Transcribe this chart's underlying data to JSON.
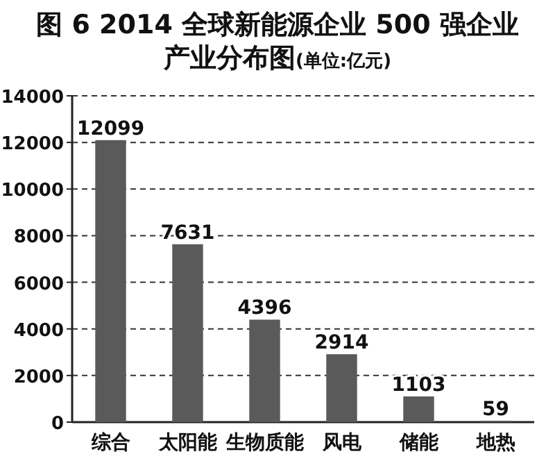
{
  "chart_data": {
    "type": "bar",
    "title": "图 6  2014 全球新能源企业 500 强企业产业分布图",
    "subtitle": "(单位:亿元)",
    "categories": [
      "综合",
      "太阳能",
      "生物质能",
      "风电",
      "储能",
      "地热"
    ],
    "values": [
      12099,
      7631,
      4396,
      2914,
      1103,
      59
    ],
    "color": "#5a5a5a",
    "ylim": [
      0,
      14000
    ],
    "yticks": [
      0,
      2000,
      4000,
      6000,
      8000,
      10000,
      12000,
      14000
    ],
    "grid": "y",
    "data_labels": true
  }
}
